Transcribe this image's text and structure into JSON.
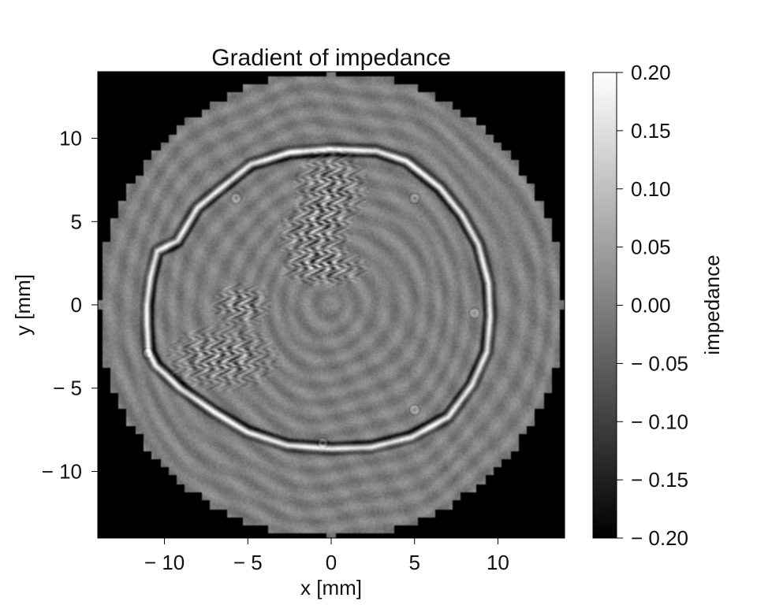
{
  "chart_data": {
    "type": "heatmap",
    "title": "Gradient of impedance",
    "xlabel": "x [mm]",
    "ylabel": "y [mm]",
    "xlim": [
      -14,
      14
    ],
    "ylim": [
      -14,
      14
    ],
    "xticks": [
      -10,
      -5,
      0,
      5,
      10
    ],
    "yticks": [
      -10,
      -5,
      0,
      5,
      10
    ],
    "xtick_labels": [
      "− 10",
      "− 5",
      "0",
      "5",
      "10"
    ],
    "ytick_labels": [
      "− 10",
      "− 5",
      "0",
      "5",
      "10"
    ],
    "colormap": "gray",
    "colorbar": {
      "label": "impedance",
      "range": [
        -0.2,
        0.2
      ],
      "ticks": [
        0.2,
        0.15,
        0.1,
        0.05,
        0.0,
        -0.05,
        -0.1,
        -0.15,
        -0.2
      ],
      "tick_labels": [
        "0.20",
        "0.15",
        "0.10",
        "0.05",
        "0.00",
        "− 0.05",
        "− 0.10",
        "− 0.15",
        "− 0.20"
      ]
    },
    "field": {
      "domain_radius_mm": 14,
      "outside_value": -0.2,
      "background_value": 0.0,
      "skull_outline_mm": [
        [
          -10.9,
          -2.8
        ],
        [
          -11.0,
          -1.2
        ],
        [
          -11.0,
          0.0
        ],
        [
          -10.8,
          1.6
        ],
        [
          -10.4,
          3.2
        ],
        [
          -9.2,
          3.8
        ],
        [
          -8.0,
          5.8
        ],
        [
          -6.8,
          6.8
        ],
        [
          -4.8,
          8.4
        ],
        [
          -2.5,
          9.1
        ],
        [
          0.0,
          9.3
        ],
        [
          2.7,
          9.2
        ],
        [
          4.5,
          8.6
        ],
        [
          6.5,
          7.0
        ],
        [
          7.8,
          5.4
        ],
        [
          8.8,
          3.6
        ],
        [
          9.4,
          1.3
        ],
        [
          9.5,
          -0.7
        ],
        [
          9.3,
          -2.8
        ],
        [
          8.4,
          -4.8
        ],
        [
          7.0,
          -6.7
        ],
        [
          4.8,
          -7.9
        ],
        [
          2.4,
          -8.5
        ],
        [
          0.0,
          -8.6
        ],
        [
          -2.6,
          -8.4
        ],
        [
          -5.0,
          -7.6
        ],
        [
          -7.0,
          -6.4
        ],
        [
          -9.0,
          -5.0
        ],
        [
          -10.5,
          -3.6
        ]
      ],
      "bright_spots_mm": [
        [
          -5.7,
          6.4
        ],
        [
          5.0,
          6.4
        ],
        [
          -11.0,
          -2.9
        ],
        [
          8.6,
          -0.5
        ],
        [
          5.0,
          -6.3
        ],
        [
          -0.5,
          -8.3
        ]
      ],
      "structures_mm": [
        {
          "cx": 0.0,
          "cy": 7.0,
          "rx": 2.0,
          "ry": 2.2
        },
        {
          "cx": -1.0,
          "cy": 4.2,
          "rx": 2.0,
          "ry": 1.8
        },
        {
          "cx": -0.4,
          "cy": 2.2,
          "rx": 2.4,
          "ry": 1.0
        },
        {
          "cx": -5.4,
          "cy": 0.0,
          "rx": 1.6,
          "ry": 1.2
        },
        {
          "cx": -6.5,
          "cy": -3.2,
          "rx": 3.0,
          "ry": 1.8
        }
      ]
    }
  }
}
